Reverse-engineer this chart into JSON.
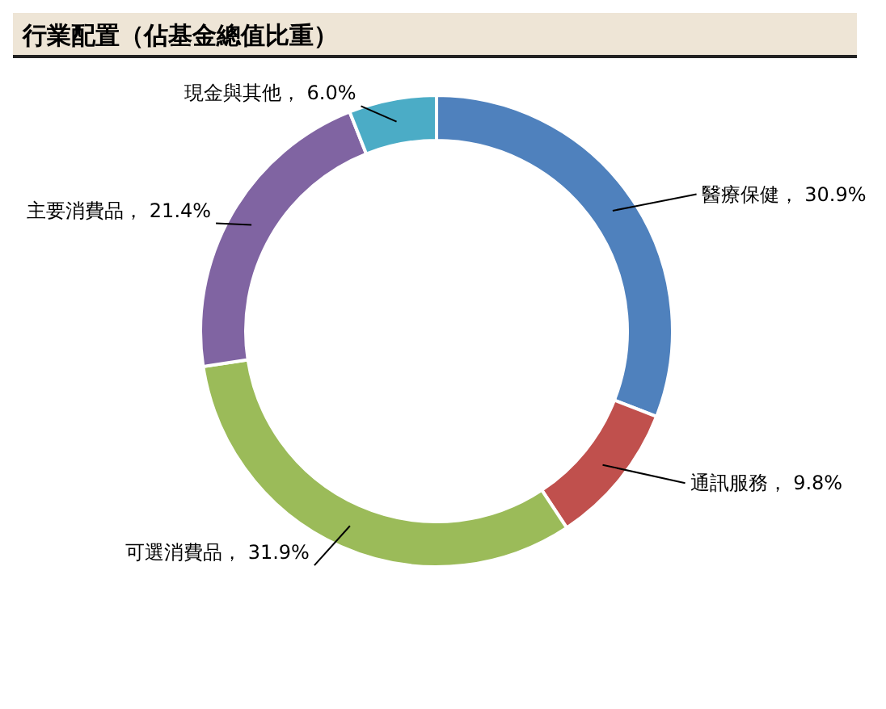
{
  "chart_data": {
    "type": "donut",
    "title": "行業配置（佔基金總值比重）",
    "categories": [
      "醫療保健",
      "通訊服務",
      "可選消費品",
      "主要消費品",
      "現金與其他"
    ],
    "values": [
      30.9,
      9.8,
      31.9,
      21.4,
      6.0
    ],
    "colors": [
      "#4f81bd",
      "#c0504d",
      "#9bbb59",
      "#8064a2",
      "#4bacc6"
    ],
    "value_labels": [
      "30.9%",
      "9.8%",
      "31.9%",
      "21.4%",
      "6.0%"
    ]
  }
}
